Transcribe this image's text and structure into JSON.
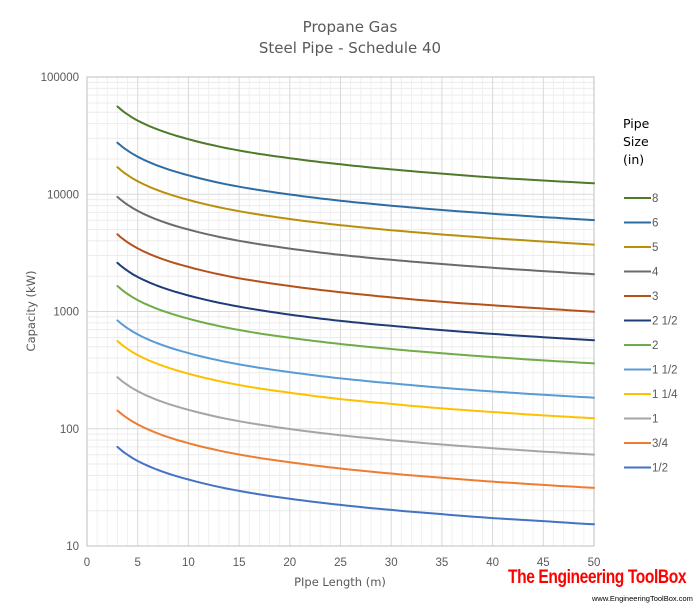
{
  "chart_data": {
    "type": "line",
    "title": "Propane Gas",
    "subtitle": "Steel Pipe - Schedule 40",
    "xlabel": "PIpe Length (m)",
    "ylabel": "Capacity (kW)",
    "xlim": [
      0,
      50
    ],
    "ylim": [
      10,
      100000
    ],
    "yscale": "log",
    "grid": true,
    "legend_position": "right",
    "legend_title": "Pipe Size (in)",
    "x_ticks": [
      "0",
      "5",
      "10",
      "15",
      "20",
      "25",
      "30",
      "35",
      "40",
      "45",
      "50"
    ],
    "y_ticks": [
      "10",
      "100",
      "1000",
      "10000",
      "100000"
    ],
    "x": [
      3,
      5,
      10,
      15,
      20,
      25,
      30,
      35,
      40,
      45,
      50
    ],
    "series": [
      {
        "name": "8",
        "color": "#4e7a2a",
        "values": [
          56000,
          42500,
          29500,
          23600,
          20300,
          18000,
          16300,
          15000,
          13900,
          13100,
          12400
        ]
      },
      {
        "name": "6",
        "color": "#2e6da4",
        "values": [
          27500,
          20900,
          14500,
          11600,
          9960,
          8800,
          7990,
          7340,
          6820,
          6390,
          6020
        ]
      },
      {
        "name": "5",
        "color": "#b8900c",
        "values": [
          17000,
          12900,
          8950,
          7170,
          6150,
          5450,
          4940,
          4540,
          4220,
          3950,
          3720
        ]
      },
      {
        "name": "4",
        "color": "#6b6b6b",
        "values": [
          9500,
          7210,
          5000,
          4010,
          3440,
          3040,
          2760,
          2540,
          2360,
          2210,
          2080
        ]
      },
      {
        "name": "3",
        "color": "#b5521b",
        "values": [
          4550,
          3450,
          2400,
          1920,
          1650,
          1460,
          1320,
          1210,
          1130,
          1060,
          995
        ]
      },
      {
        "name": "2  1/2",
        "color": "#1f3c78",
        "values": [
          2600,
          1970,
          1370,
          1100,
          941,
          832,
          755,
          694,
          644,
          604,
          569
        ]
      },
      {
        "name": "2",
        "color": "#70ad47",
        "values": [
          1650,
          1250,
          868,
          695,
          597,
          528,
          479,
          440,
          409,
          383,
          361
        ]
      },
      {
        "name": "1  1/2",
        "color": "#5b9bd5",
        "values": [
          840,
          638,
          442,
          354,
          304,
          269,
          244,
          224,
          208,
          195,
          184
        ]
      },
      {
        "name": "1  1/4",
        "color": "#ffc000",
        "values": [
          560,
          425,
          295,
          236,
          203,
          179,
          163,
          149,
          139,
          130,
          123
        ]
      },
      {
        "name": "1",
        "color": "#a5a5a5",
        "values": [
          275,
          209,
          145,
          116,
          99.5,
          88.0,
          79.9,
          73.4,
          68.2,
          63.9,
          60.2
        ]
      },
      {
        "name": "3/4",
        "color": "#ed7d31",
        "values": [
          143,
          109,
          75.3,
          60.3,
          51.8,
          45.8,
          41.5,
          38.2,
          35.4,
          33.2,
          31.3
        ]
      },
      {
        "name": "1/2",
        "color": "#4472c4",
        "values": [
          70,
          53.1,
          36.9,
          29.5,
          25.3,
          22.4,
          20.3,
          18.7,
          17.3,
          16.3,
          15.3
        ]
      }
    ]
  },
  "legend": {
    "title_lines": [
      "Pipe",
      "Size",
      "(in)"
    ]
  },
  "watermark": {
    "brand": "The Engineering ToolBox",
    "url": "www.EngineeringToolBox.com"
  }
}
